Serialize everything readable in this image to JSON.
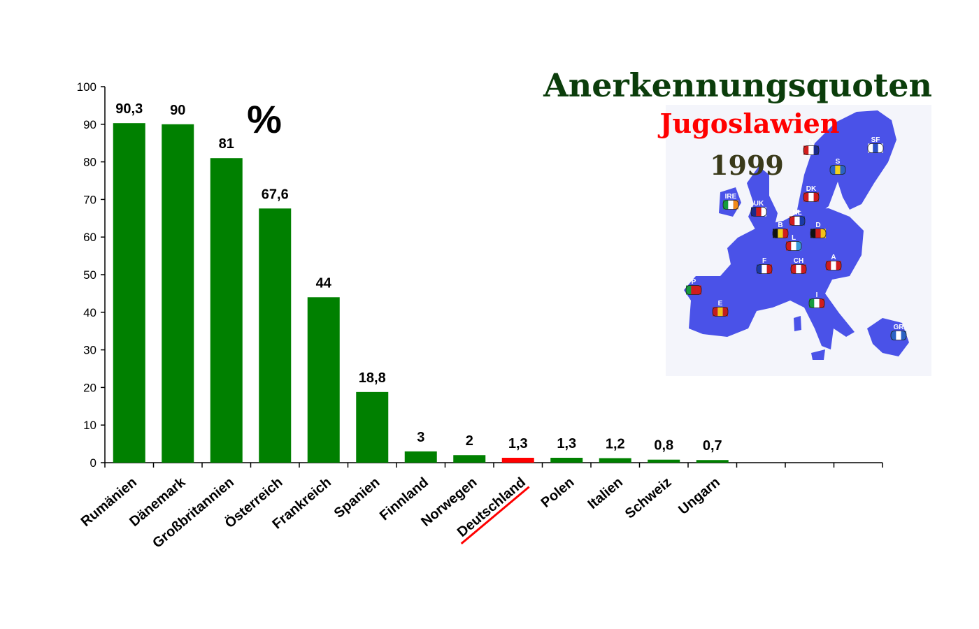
{
  "chart_data": {
    "type": "bar",
    "title": "Anerkennungsquoten",
    "subtitle": "Jugoslawien",
    "year": "1999",
    "unit": "%",
    "categories": [
      "Rumänien",
      "Dänemark",
      "Großbritannien",
      "Österreich",
      "Frankreich",
      "Spanien",
      "Finnland",
      "Norwegen",
      "Deutschland",
      "Polen",
      "Italien",
      "Schweiz",
      "Ungarn"
    ],
    "values": [
      90.3,
      90,
      81,
      67.6,
      44,
      18.8,
      3,
      2,
      1.3,
      1.3,
      1.2,
      0.8,
      0.7
    ],
    "value_labels": [
      "90,3",
      "90",
      "81",
      "67,6",
      "44",
      "18,8",
      "3",
      "2",
      "1,3",
      "1,3",
      "1,2",
      "0,8",
      "0,7"
    ],
    "highlight_category": "Deutschland",
    "ylim": [
      0,
      100
    ],
    "yticks": [
      0,
      10,
      20,
      30,
      40,
      50,
      60,
      70,
      80,
      90,
      100
    ],
    "xlabel": "",
    "ylabel": "",
    "grid": false,
    "colors": {
      "bar": "#008000",
      "highlight": "#ff0000",
      "title": "#0b3d0b",
      "subtitle": "#ff0000",
      "year": "#3a3a1a",
      "map_land": "#4a52e8",
      "map_sea": "#ffffff"
    }
  },
  "map": {
    "flags": [
      "N",
      "SF",
      "S",
      "DK",
      "IRE",
      "UK",
      "NL",
      "B",
      "D",
      "L",
      "F",
      "CH",
      "A",
      "P",
      "E",
      "I",
      "GR"
    ]
  }
}
